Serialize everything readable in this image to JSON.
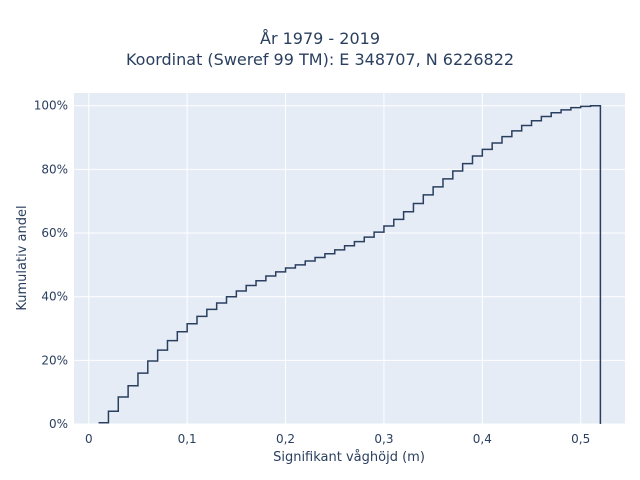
{
  "chart_data": {
    "type": "line",
    "title_lines": [
      "År 1979 - 2019",
      "Koordinat (Sweref 99 TM): E 348707, N 6226822"
    ],
    "xlabel": "Signifikant våghöjd (m)",
    "ylabel": "Kumulativ andel",
    "xlim": [
      -0.015,
      0.545
    ],
    "ylim": [
      0,
      1.04
    ],
    "x_ticks": [
      0,
      0.1,
      0.2,
      0.3,
      0.4,
      0.5
    ],
    "x_tick_labels": [
      "0",
      "0,1",
      "0,2",
      "0,3",
      "0,4",
      "0,5"
    ],
    "y_ticks": [
      0,
      0.2,
      0.4,
      0.6,
      0.8,
      1.0
    ],
    "y_tick_labels": [
      "0%",
      "20%",
      "40%",
      "60%",
      "80%",
      "100%"
    ],
    "grid": true,
    "line_shape": "step (horizontal-then-vertical)",
    "series": [
      {
        "color": "#2a3f5f",
        "x": [
          0.01,
          0.02,
          0.03,
          0.04,
          0.05,
          0.06,
          0.07,
          0.08,
          0.09,
          0.1,
          0.11,
          0.12,
          0.13,
          0.14,
          0.15,
          0.16,
          0.17,
          0.18,
          0.19,
          0.2,
          0.21,
          0.22,
          0.23,
          0.24,
          0.25,
          0.26,
          0.27,
          0.28,
          0.29,
          0.3,
          0.31,
          0.32,
          0.33,
          0.34,
          0.35,
          0.36,
          0.37,
          0.38,
          0.39,
          0.4,
          0.41,
          0.42,
          0.43,
          0.44,
          0.45,
          0.46,
          0.47,
          0.48,
          0.49,
          0.5,
          0.51,
          0.52
        ],
        "y": [
          0.004,
          0.04,
          0.085,
          0.12,
          0.16,
          0.198,
          0.232,
          0.262,
          0.29,
          0.315,
          0.338,
          0.36,
          0.38,
          0.4,
          0.418,
          0.435,
          0.45,
          0.465,
          0.478,
          0.49,
          0.5,
          0.512,
          0.523,
          0.535,
          0.547,
          0.56,
          0.573,
          0.587,
          0.603,
          0.622,
          0.643,
          0.667,
          0.693,
          0.72,
          0.745,
          0.77,
          0.795,
          0.818,
          0.842,
          0.863,
          0.883,
          0.903,
          0.921,
          0.938,
          0.953,
          0.966,
          0.978,
          0.987,
          0.994,
          0.998,
          1.0,
          0
        ]
      }
    ]
  }
}
